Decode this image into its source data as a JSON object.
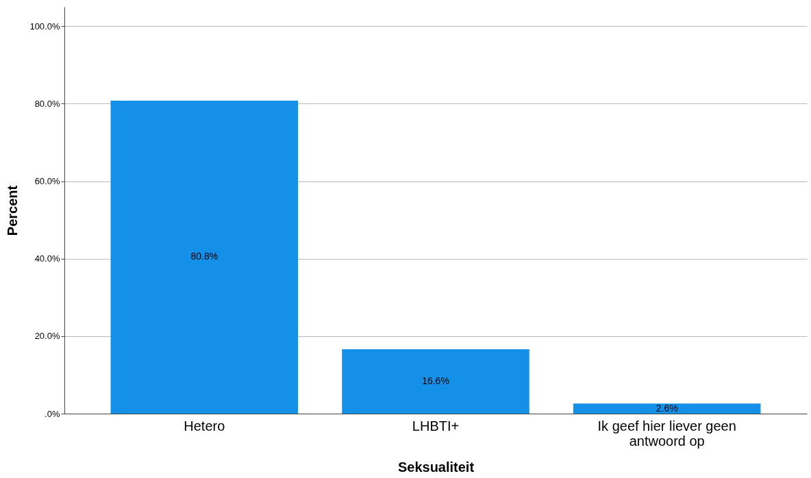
{
  "chart_data": {
    "type": "bar",
    "xlabel": "Seksualiteit",
    "ylabel": "Percent",
    "categories": [
      "Hetero",
      "LHBTI+",
      "Ik geef hier liever geen antwoord op"
    ],
    "values": [
      80.8,
      16.6,
      2.6
    ],
    "color": "#1590e8",
    "value_labels": [
      "80.8%",
      "16.6%",
      "2.6%"
    ],
    "ylim": [
      0,
      105
    ],
    "yticks": [
      {
        "value": 0,
        "label": ".0%"
      },
      {
        "value": 20,
        "label": "20.0%"
      },
      {
        "value": 40,
        "label": "40.0%"
      },
      {
        "value": 60,
        "label": "60.0%"
      },
      {
        "value": 80,
        "label": "80.0%"
      },
      {
        "value": 100,
        "label": "100.0%"
      }
    ],
    "grid": "y"
  }
}
